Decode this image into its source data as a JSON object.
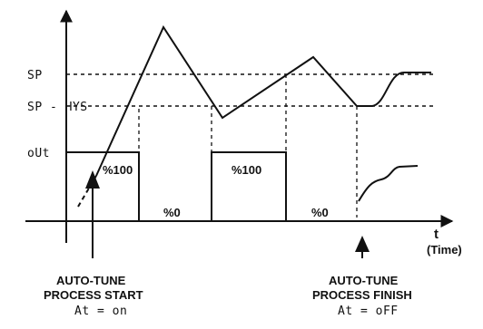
{
  "diagram": {
    "y_labels": {
      "sp": "SP",
      "sp_hys": "SP - HYS",
      "out": "oUt"
    },
    "x_axis": {
      "label": "t",
      "unit": "(Time)"
    },
    "pulse_labels": [
      "%100",
      "%100"
    ],
    "zero_labels": [
      "%0",
      "%0"
    ],
    "start_note": {
      "line1": "AUTO-TUNE",
      "line2": "PROCESS START",
      "state": "At = on"
    },
    "finish_note": {
      "line1": "AUTO-TUNE",
      "line2": "PROCESS FINISH",
      "state": "At = oFF"
    }
  }
}
